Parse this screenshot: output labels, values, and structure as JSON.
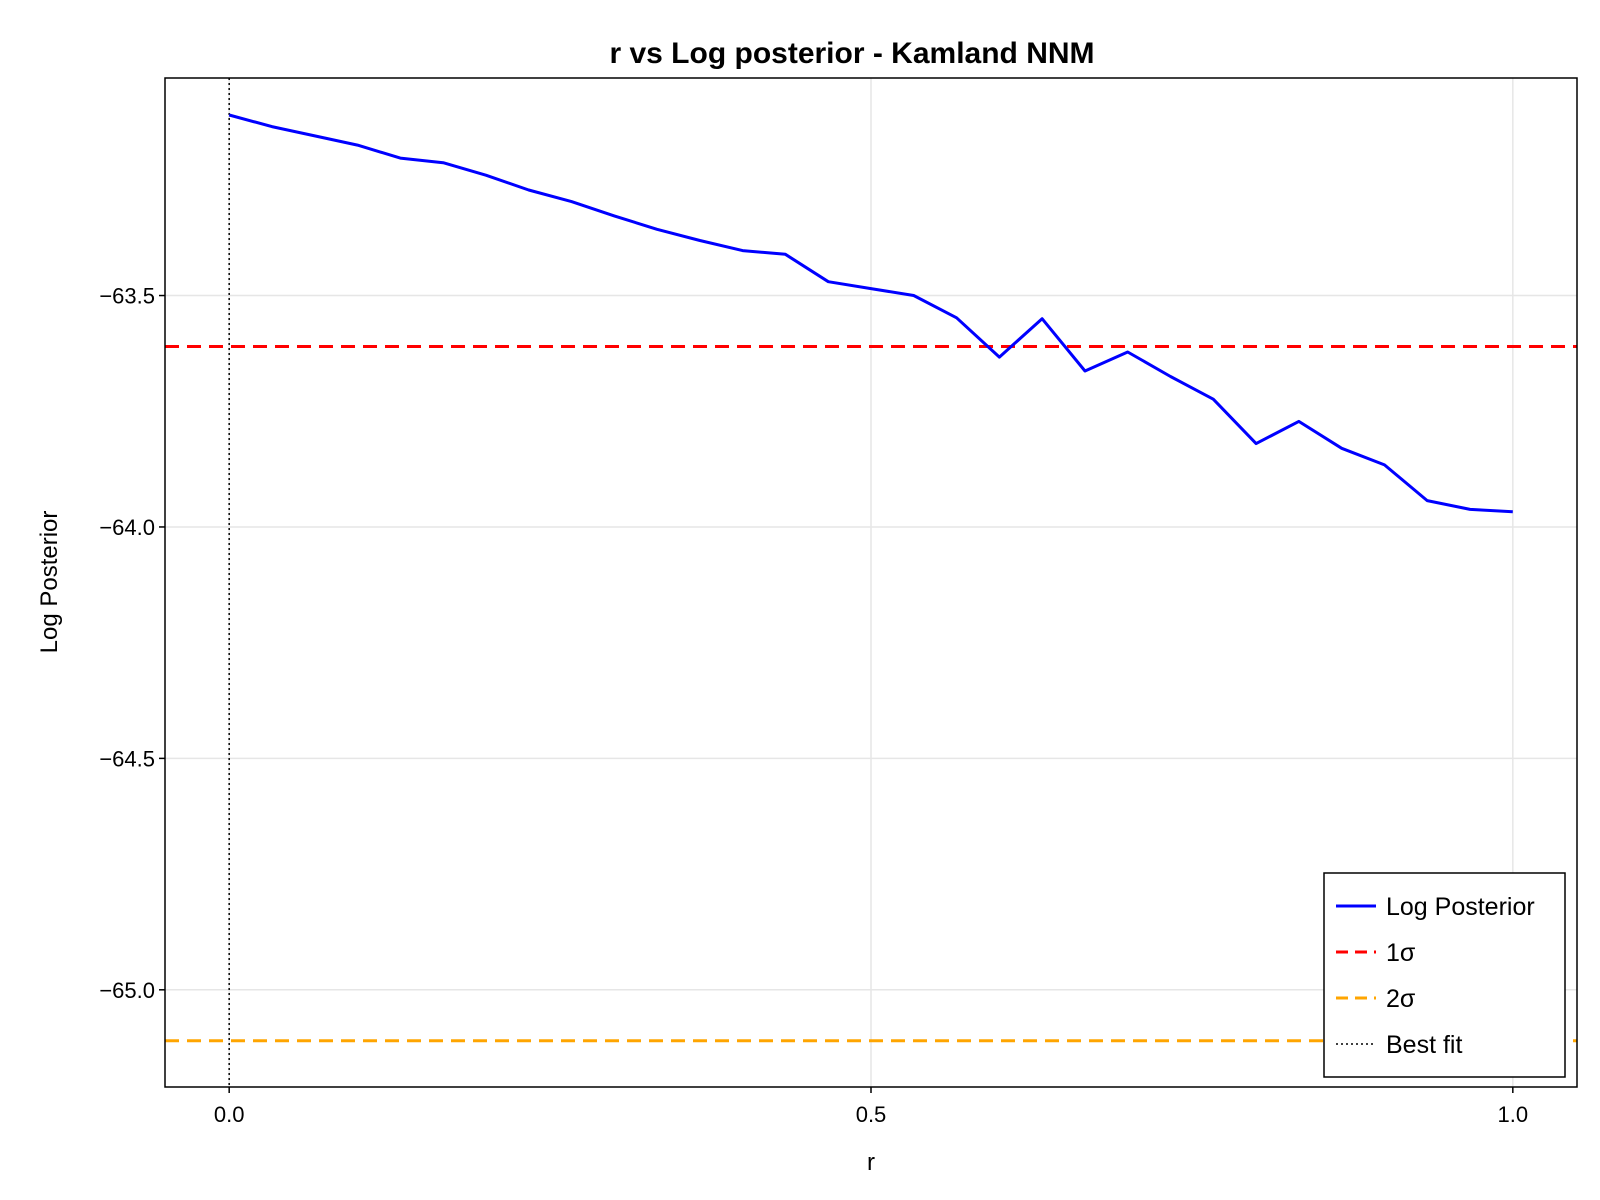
{
  "chart_data": {
    "type": "line",
    "title": "r vs Log posterior - Kamland NNM",
    "xlabel": "r",
    "ylabel": "Log Posterior",
    "xlim": [
      -0.05,
      1.05
    ],
    "ylim": [
      -65.21,
      -63.03
    ],
    "x_ticks": [
      0.0,
      0.5,
      1.0
    ],
    "x_tick_labels": [
      "0.0",
      "0.5",
      "1.0"
    ],
    "y_ticks": [
      -63.5,
      -64.0,
      -64.5,
      -65.0
    ],
    "y_tick_labels": [
      "−63.5",
      "−64.0",
      "−64.5",
      "−65.0"
    ],
    "grid": true,
    "legend_position": "bottom-right",
    "series": [
      {
        "name": "Log Posterior",
        "color": "#0000ff",
        "style": "solid",
        "x": [
          0.0,
          0.0333,
          0.0667,
          0.1,
          0.1333,
          0.1667,
          0.2,
          0.2333,
          0.2667,
          0.3,
          0.3333,
          0.3667,
          0.4,
          0.4333,
          0.4667,
          0.5,
          0.5333,
          0.5667,
          0.6,
          0.6333,
          0.6667,
          0.7,
          0.7333,
          0.7667,
          0.8,
          0.8333,
          0.8667,
          0.9,
          0.9333,
          0.9667,
          1.0
        ],
        "y": [
          -63.11,
          -63.135,
          -63.155,
          -63.175,
          -63.203,
          -63.213,
          -63.24,
          -63.272,
          -63.297,
          -63.328,
          -63.357,
          -63.381,
          -63.403,
          -63.411,
          -63.47,
          -63.485,
          -63.5,
          -63.548,
          -63.633,
          -63.55,
          -63.663,
          -63.622,
          -63.675,
          -63.724,
          -63.82,
          -63.772,
          -63.83,
          -63.866,
          -63.943,
          -63.962,
          -63.967
        ]
      }
    ],
    "reference_lines": [
      {
        "name": "1σ",
        "orientation": "horizontal",
        "value": -63.61,
        "color": "#ff0000",
        "style": "dashed"
      },
      {
        "name": "2σ",
        "orientation": "horizontal",
        "value": -65.11,
        "color": "#ffa500",
        "style": "dashed"
      },
      {
        "name": "Best fit",
        "orientation": "vertical",
        "value": 0.0,
        "color": "#000000",
        "style": "dotted"
      }
    ]
  }
}
